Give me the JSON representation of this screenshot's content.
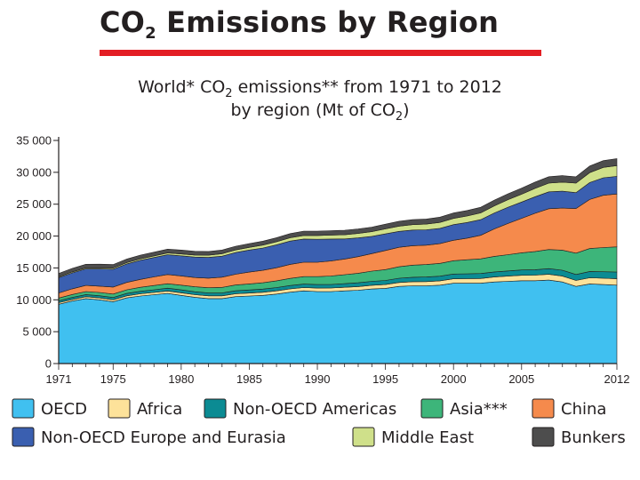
{
  "slide": {
    "title_main": "CO",
    "title_sub": "2",
    "title_rest": " Emissions by Region"
  },
  "chart_title": {
    "line1_a": "World* CO",
    "line1_sub": "2",
    "line1_b": " emissions** from 1971 to 2012",
    "line2_a": "by region (Mt of CO",
    "line2_sub": "2",
    "line2_b": ")"
  },
  "chart_data": {
    "type": "area",
    "stacked": true,
    "title": "World* CO2 emissions** from 1971 to 2012 by region (Mt of CO2)",
    "xlabel": "",
    "ylabel": "",
    "ylim": [
      0,
      35000
    ],
    "xlim": [
      1971,
      2012
    ],
    "grid": false,
    "legend_position": "bottom",
    "x": [
      1971,
      1972,
      1973,
      1974,
      1975,
      1976,
      1977,
      1978,
      1979,
      1980,
      1981,
      1982,
      1983,
      1984,
      1985,
      1986,
      1987,
      1988,
      1989,
      1990,
      1991,
      1992,
      1993,
      1994,
      1995,
      1996,
      1997,
      1998,
      1999,
      2000,
      2001,
      2002,
      2003,
      2004,
      2005,
      2006,
      2007,
      2008,
      2009,
      2010,
      2011,
      2012
    ],
    "y_ticks": [
      0,
      5000,
      10000,
      15000,
      20000,
      25000,
      30000,
      35000
    ],
    "y_tick_labels": [
      "0",
      "5 000",
      "10 000",
      "15 000",
      "20 000",
      "25 000",
      "30 000",
      "35 000"
    ],
    "x_ticks": [
      1971,
      1975,
      1980,
      1985,
      1990,
      1995,
      2000,
      2005,
      2012
    ],
    "x_tick_labels": [
      "1971",
      "1975",
      "1980",
      "1985",
      "1990",
      "1995",
      "2000",
      "2005",
      "2012"
    ],
    "series": [
      {
        "name": "OECD",
        "color": "#40c0f0",
        "values": [
          9300,
          9800,
          10200,
          10000,
          9700,
          10300,
          10600,
          10800,
          11000,
          10700,
          10400,
          10200,
          10200,
          10500,
          10600,
          10700,
          10900,
          11200,
          11400,
          11300,
          11300,
          11400,
          11500,
          11700,
          11800,
          12100,
          12200,
          12200,
          12300,
          12600,
          12600,
          12600,
          12800,
          12900,
          13000,
          13000,
          13100,
          12800,
          12100,
          12500,
          12400,
          12300
        ]
      },
      {
        "name": "Africa",
        "color": "#fde29a",
        "values": [
          250,
          260,
          280,
          290,
          300,
          320,
          340,
          360,
          380,
          400,
          410,
          420,
          430,
          440,
          460,
          480,
          500,
          510,
          520,
          540,
          550,
          560,
          570,
          580,
          600,
          620,
          640,
          660,
          680,
          700,
          720,
          750,
          780,
          820,
          850,
          870,
          900,
          920,
          940,
          960,
          980,
          1000
        ]
      },
      {
        "name": "Non-OECD Americas",
        "color": "#0b8b93",
        "values": [
          300,
          320,
          340,
          350,
          360,
          380,
          400,
          420,
          440,
          460,
          460,
          460,
          460,
          480,
          490,
          500,
          520,
          530,
          540,
          550,
          560,
          580,
          600,
          620,
          640,
          670,
          700,
          720,
          730,
          740,
          760,
          770,
          790,
          810,
          830,
          860,
          890,
          920,
          930,
          980,
          1020,
          1060
        ]
      },
      {
        "name": "Asia***",
        "color": "#3db57a",
        "values": [
          420,
          450,
          480,
          510,
          540,
          580,
          620,
          660,
          700,
          740,
          780,
          820,
          860,
          900,
          950,
          1000,
          1060,
          1120,
          1180,
          1250,
          1330,
          1410,
          1500,
          1600,
          1700,
          1800,
          1900,
          1950,
          2000,
          2100,
          2200,
          2300,
          2450,
          2550,
          2700,
          2850,
          3000,
          3150,
          3350,
          3600,
          3800,
          3950
        ]
      },
      {
        "name": "China",
        "color": "#f58a4c",
        "values": [
          800,
          900,
          950,
          1000,
          1100,
          1150,
          1250,
          1350,
          1450,
          1450,
          1450,
          1500,
          1600,
          1700,
          1850,
          1950,
          2050,
          2200,
          2250,
          2250,
          2350,
          2450,
          2600,
          2750,
          3000,
          3050,
          3050,
          3050,
          3100,
          3200,
          3400,
          3700,
          4300,
          4900,
          5400,
          6000,
          6400,
          6600,
          7000,
          7700,
          8200,
          8300
        ]
      },
      {
        "name": "Non-OECD Europe and Eurasia",
        "color": "#3a5fb0",
        "values": [
          2400,
          2500,
          2600,
          2700,
          2800,
          2900,
          3000,
          3050,
          3100,
          3150,
          3200,
          3250,
          3300,
          3400,
          3450,
          3500,
          3600,
          3650,
          3650,
          3600,
          3450,
          3150,
          2950,
          2700,
          2600,
          2500,
          2450,
          2400,
          2400,
          2450,
          2450,
          2450,
          2500,
          2550,
          2550,
          2600,
          2650,
          2650,
          2500,
          2650,
          2750,
          2750
        ]
      },
      {
        "name": "Middle East",
        "color": "#cfe08a",
        "values": [
          120,
          140,
          160,
          170,
          180,
          200,
          220,
          240,
          270,
          300,
          320,
          350,
          380,
          400,
          430,
          460,
          490,
          520,
          560,
          600,
          620,
          660,
          700,
          740,
          780,
          820,
          860,
          900,
          940,
          980,
          1020,
          1060,
          1120,
          1180,
          1240,
          1300,
          1360,
          1420,
          1480,
          1560,
          1620,
          1700
        ]
      },
      {
        "name": "Bunkers",
        "color": "#4d4d4d",
        "values": [
          550,
          560,
          570,
          570,
          560,
          570,
          580,
          590,
          600,
          600,
          590,
          580,
          580,
          590,
          600,
          610,
          630,
          650,
          670,
          680,
          690,
          700,
          710,
          720,
          740,
          760,
          780,
          800,
          820,
          850,
          860,
          880,
          900,
          930,
          960,
          990,
          1010,
          1020,
          990,
          1040,
          1060,
          1080
        ]
      }
    ],
    "legend": [
      {
        "label": "OECD",
        "color": "#40c0f0"
      },
      {
        "label": "Africa",
        "color": "#fde29a"
      },
      {
        "label": "Non-OECD Americas",
        "color": "#0b8b93"
      },
      {
        "label": "Asia***",
        "color": "#3db57a"
      },
      {
        "label": "China",
        "color": "#f58a4c"
      },
      {
        "label": "Non-OECD Europe and Eurasia",
        "color": "#3a5fb0"
      },
      {
        "label": "Middle East",
        "color": "#cfe08a"
      },
      {
        "label": "Bunkers",
        "color": "#4d4d4d"
      }
    ]
  }
}
